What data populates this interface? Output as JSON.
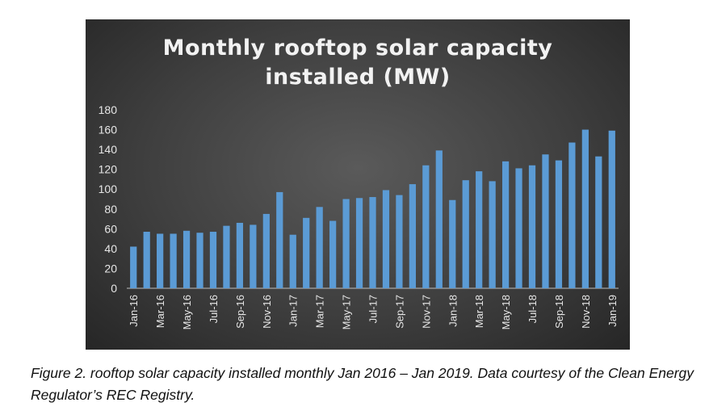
{
  "chart_data": {
    "type": "bar",
    "title": "Monthly rooftop solar capacity\ninstalled (MW)",
    "categories": [
      "Jan-16",
      "Feb-16",
      "Mar-16",
      "Apr-16",
      "May-16",
      "Jun-16",
      "Jul-16",
      "Aug-16",
      "Sep-16",
      "Oct-16",
      "Nov-16",
      "Dec-16",
      "Jan-17",
      "Feb-17",
      "Mar-17",
      "Apr-17",
      "May-17",
      "Jun-17",
      "Jul-17",
      "Aug-17",
      "Sep-17",
      "Oct-17",
      "Nov-17",
      "Dec-17",
      "Jan-18",
      "Feb-18",
      "Mar-18",
      "Apr-18",
      "May-18",
      "Jun-18",
      "Jul-18",
      "Aug-18",
      "Sep-18",
      "Oct-18",
      "Nov-18",
      "Dec-18",
      "Jan-19"
    ],
    "values": [
      42,
      57,
      55,
      55,
      58,
      56,
      57,
      63,
      66,
      64,
      75,
      97,
      54,
      71,
      82,
      68,
      90,
      91,
      92,
      99,
      94,
      105,
      124,
      139,
      89,
      109,
      118,
      108,
      128,
      121,
      124,
      135,
      129,
      147,
      160,
      133,
      159
    ],
    "tick_labels": [
      "Jan-16",
      "Mar-16",
      "May-16",
      "Jul-16",
      "Sep-16",
      "Nov-16",
      "Jan-17",
      "Mar-17",
      "May-17",
      "Jul-17",
      "Sep-17",
      "Nov-17",
      "Jan-18",
      "Mar-18",
      "May-18",
      "Jul-18",
      "Sep-18",
      "Nov-18",
      "Jan-19"
    ],
    "y_ticks": [
      0,
      20,
      40,
      60,
      80,
      100,
      120,
      140,
      160,
      180
    ],
    "ylim": [
      0,
      180
    ],
    "xlabel": "",
    "ylabel": "",
    "grid": false,
    "bar_color": "#5b9bd5",
    "background_color": "#404040"
  },
  "caption": "Figure 2. rooftop solar capacity installed monthly Jan 2016 – Jan 2019. Data courtesy of the Clean Energy Regulator’s REC Registry."
}
